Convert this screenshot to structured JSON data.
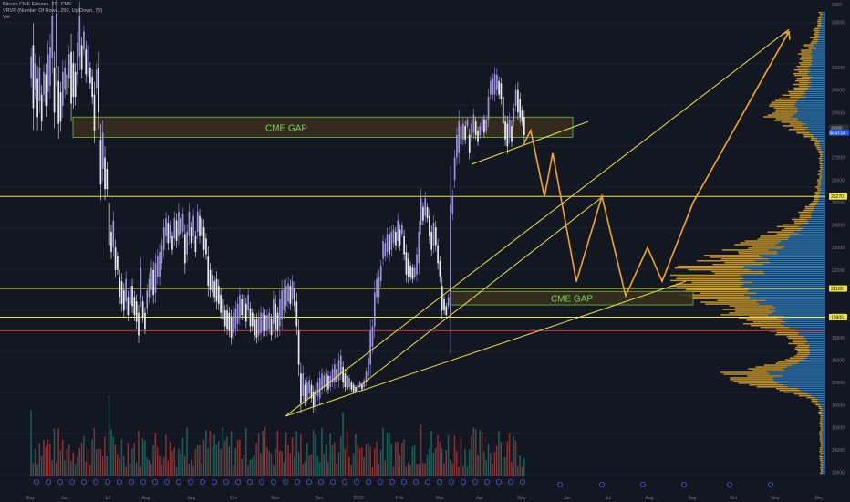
{
  "header": {
    "title": "Bitcoin CME Futures, 1D, CME",
    "indicator": "VRVP (Number Of Rows, 250, Up/Down, 70)",
    "volume_label": "Vol"
  },
  "price_axis": {
    "ticks": [
      "3350",
      "33000",
      "31000",
      "30000",
      "29000",
      "27000",
      "26000",
      "25000",
      "24000",
      "23000",
      "22000",
      "20000",
      "19000",
      "18000",
      "17000",
      "16000",
      "15000",
      "14000",
      "13000"
    ],
    "current_price": "28265",
    "current_countdown": "06:47:24",
    "level_tags": [
      "25270",
      "21180",
      "19905"
    ]
  },
  "time_axis": {
    "ticks": [
      "May",
      "Jun",
      "Jul",
      "Aug",
      "Sep",
      "Oct",
      "Nov",
      "Dec",
      "2023",
      "Feb",
      "Mar",
      "Apr",
      "May",
      "Jun",
      "Jul",
      "Aug",
      "Sep",
      "Oct",
      "Nov",
      "Dec"
    ]
  },
  "annotations": {
    "gap_top": "CME GAP",
    "gap_bottom": "CME GAP"
  },
  "colors": {
    "background": "#131722",
    "candle_up": "#9c8fe0",
    "candle_down": "#e8e8f0",
    "gap_fill": "#3a2f1c",
    "gap_border": "#6fbf40",
    "gap_text": "#7fd15a",
    "support_line": "#f0e442",
    "red_line": "#e0303a",
    "projection": "#f5a623",
    "vp_up": "#2f84c8",
    "vp_down": "#e0a82a",
    "vol_up": "#1f7a6b",
    "vol_down": "#b23b3b"
  },
  "chart_data": {
    "type": "candlestick",
    "price_range": [
      12500,
      33800
    ],
    "horizontal_levels": [
      25270,
      21180,
      19905,
      19300
    ],
    "gap_zones": [
      {
        "label": "CME GAP",
        "from": 27900,
        "to": 28800
      },
      {
        "label": "CME GAP",
        "from": 20450,
        "to": 21050
      }
    ],
    "close_path": [
      [
        30500,
        31500
      ],
      [
        29200,
        32000
      ],
      [
        30000,
        31200
      ],
      [
        28800,
        30500
      ],
      [
        29500,
        31000
      ],
      [
        28600,
        29800
      ],
      [
        29800,
        30800
      ],
      [
        29300,
        30700
      ],
      [
        29900,
        31600
      ],
      [
        30200,
        31900
      ],
      [
        31400,
        33300
      ],
      [
        29000,
        31000
      ],
      [
        31000,
        33400
      ],
      [
        28500,
        30400
      ],
      [
        28600,
        29900
      ],
      [
        29300,
        30800
      ],
      [
        30000,
        31000
      ],
      [
        29800,
        30700
      ],
      [
        30500,
        31600
      ],
      [
        29400,
        31700
      ],
      [
        29700,
        31200
      ],
      [
        29700,
        30800
      ],
      [
        30700,
        32100
      ],
      [
        31500,
        33300
      ],
      [
        30900,
        32000
      ],
      [
        31800,
        32600
      ],
      [
        30700,
        31800
      ],
      [
        30600,
        32000
      ],
      [
        30300,
        31000
      ],
      [
        29700,
        30600
      ],
      [
        28200,
        29800
      ],
      [
        30100,
        30900
      ],
      [
        29000,
        31000
      ],
      [
        25800,
        27800
      ],
      [
        26500,
        28100
      ],
      [
        25600,
        27000
      ],
      [
        25600,
        26500
      ],
      [
        23100,
        25000
      ],
      [
        22800,
        23700
      ],
      [
        23000,
        24200
      ],
      [
        22000,
        23000
      ],
      [
        22000,
        22600
      ],
      [
        20800,
        21700
      ],
      [
        20500,
        21500
      ],
      [
        20200,
        21100
      ],
      [
        20600,
        21600
      ],
      [
        20000,
        20800
      ],
      [
        20500,
        21300
      ],
      [
        20400,
        21300
      ],
      [
        20000,
        20800
      ],
      [
        19700,
        20600
      ],
      [
        19100,
        20100
      ],
      [
        20800,
        22100
      ],
      [
        19900,
        20600
      ],
      [
        19400,
        20100
      ],
      [
        20300,
        21100
      ],
      [
        20800,
        21600
      ],
      [
        21100,
        22100
      ],
      [
        20900,
        22000
      ],
      [
        21000,
        22300
      ],
      [
        21700,
        22600
      ],
      [
        21700,
        22800
      ],
      [
        22300,
        23100
      ],
      [
        22900,
        23900
      ],
      [
        23500,
        24300
      ],
      [
        23200,
        24100
      ],
      [
        23400,
        24000
      ],
      [
        22900,
        23500
      ],
      [
        23400,
        24300
      ],
      [
        23300,
        24200
      ],
      [
        23500,
        24600
      ],
      [
        23600,
        24300
      ],
      [
        23700,
        24500
      ],
      [
        22300,
        23600
      ],
      [
        22700,
        23700
      ],
      [
        23500,
        24600
      ],
      [
        23200,
        23900
      ],
      [
        23500,
        24400
      ],
      [
        22800,
        23500
      ],
      [
        23700,
        24600
      ],
      [
        23500,
        24400
      ],
      [
        23500,
        24300
      ],
      [
        22900,
        23900
      ],
      [
        22700,
        23400
      ],
      [
        21300,
        22600
      ],
      [
        21100,
        22000
      ],
      [
        21000,
        21800
      ],
      [
        20800,
        21500
      ],
      [
        20600,
        21600
      ],
      [
        20500,
        21300
      ],
      [
        20100,
        20900
      ],
      [
        19800,
        20700
      ],
      [
        19500,
        20200
      ],
      [
        19400,
        20200
      ],
      [
        19300,
        20100
      ],
      [
        19000,
        19900
      ],
      [
        19200,
        20100
      ],
      [
        19400,
        20300
      ],
      [
        19600,
        20500
      ],
      [
        19900,
        20900
      ],
      [
        20000,
        20700
      ],
      [
        19900,
        20900
      ],
      [
        19700,
        20500
      ],
      [
        20200,
        20900
      ],
      [
        19500,
        20300
      ],
      [
        19500,
        20100
      ],
      [
        19100,
        19800
      ],
      [
        19000,
        19800
      ],
      [
        19100,
        19900
      ],
      [
        19200,
        20100
      ],
      [
        19300,
        20100
      ],
      [
        19300,
        20000
      ],
      [
        19300,
        20000
      ],
      [
        19400,
        20100
      ],
      [
        19100,
        19800
      ],
      [
        19600,
        20700
      ],
      [
        19400,
        20500
      ],
      [
        19300,
        20100
      ],
      [
        19500,
        20700
      ],
      [
        19800,
        21100
      ],
      [
        20200,
        21200
      ],
      [
        20400,
        21300
      ],
      [
        20600,
        21400
      ],
      [
        20500,
        21300
      ],
      [
        20700,
        21500
      ],
      [
        20400,
        21200
      ],
      [
        19500,
        20600
      ],
      [
        17800,
        19300
      ],
      [
        16100,
        17400
      ],
      [
        16400,
        17400
      ],
      [
        16200,
        16900
      ],
      [
        16300,
        17000
      ],
      [
        16500,
        17100
      ],
      [
        16300,
        16900
      ],
      [
        15900,
        16600
      ],
      [
        16000,
        16700
      ],
      [
        16400,
        17000
      ],
      [
        16300,
        17200
      ],
      [
        16700,
        17400
      ],
      [
        16800,
        17300
      ],
      [
        16800,
        17400
      ],
      [
        16700,
        17300
      ],
      [
        16800,
        17300
      ],
      [
        17000,
        17600
      ],
      [
        17000,
        17800
      ],
      [
        17000,
        17600
      ],
      [
        17100,
        18000
      ],
      [
        17400,
        18200
      ],
      [
        17000,
        17700
      ],
      [
        16800,
        17400
      ],
      [
        16700,
        17300
      ],
      [
        16800,
        17200
      ],
      [
        16700,
        17000
      ],
      [
        16600,
        16900
      ],
      [
        16600,
        16800
      ],
      [
        16600,
        16900
      ],
      [
        16800,
        17000
      ],
      [
        16700,
        16900
      ],
      [
        16800,
        17100
      ],
      [
        17000,
        17500
      ],
      [
        17300,
        18100
      ],
      [
        17800,
        19300
      ],
      [
        18600,
        19500
      ],
      [
        19500,
        21000
      ],
      [
        20800,
        21600
      ],
      [
        20800,
        21700
      ],
      [
        21500,
        22200
      ],
      [
        22500,
        23300
      ],
      [
        22600,
        23200
      ],
      [
        22800,
        23600
      ],
      [
        22700,
        23600
      ],
      [
        22900,
        23700
      ],
      [
        23200,
        23800
      ],
      [
        23100,
        23700
      ],
      [
        23300,
        24200
      ],
      [
        23100,
        23800
      ],
      [
        23600,
        24000
      ],
      [
        22700,
        23500
      ],
      [
        21800,
        22800
      ],
      [
        21700,
        22500
      ],
      [
        21700,
        22200
      ],
      [
        21600,
        22100
      ],
      [
        21700,
        22100
      ],
      [
        21800,
        22700
      ],
      [
        22300,
        23700
      ],
      [
        24000,
        25200
      ],
      [
        24200,
        24800
      ],
      [
        24400,
        25200
      ],
      [
        24300,
        24800
      ],
      [
        23500,
        24400
      ],
      [
        22900,
        23700
      ],
      [
        23100,
        24100
      ],
      [
        23100,
        23900
      ],
      [
        22300,
        23100
      ],
      [
        21700,
        22400
      ],
      [
        20200,
        21300
      ],
      [
        20200,
        20700
      ],
      [
        20000,
        20400
      ],
      [
        20400,
        20800
      ],
      [
        20000,
        24900
      ],
      [
        24500,
        25300
      ],
      [
        26000,
        27000
      ],
      [
        27000,
        28000
      ],
      [
        27200,
        28600
      ],
      [
        27600,
        28400
      ],
      [
        27800,
        28500
      ],
      [
        27800,
        28400
      ],
      [
        28400,
        28700
      ],
      [
        27200,
        28000
      ],
      [
        27900,
        28500
      ],
      [
        28100,
        28900
      ],
      [
        28000,
        28600
      ],
      [
        27700,
        28200
      ],
      [
        28000,
        28400
      ],
      [
        28200,
        28800
      ],
      [
        28100,
        28700
      ],
      [
        28200,
        28700
      ],
      [
        28700,
        29700
      ],
      [
        29800,
        30400
      ],
      [
        29800,
        30500
      ],
      [
        29800,
        30700
      ],
      [
        30000,
        30700
      ],
      [
        29800,
        30400
      ],
      [
        29600,
        30300
      ],
      [
        28500,
        29700
      ],
      [
        27800,
        28600
      ],
      [
        27500,
        28500
      ],
      [
        27900,
        28700
      ],
      [
        27700,
        28400
      ],
      [
        28600,
        29200
      ],
      [
        29300,
        30000
      ],
      [
        29000,
        30000
      ],
      [
        28800,
        29600
      ],
      [
        28600,
        29100
      ],
      [
        28000,
        28800
      ]
    ]
  }
}
